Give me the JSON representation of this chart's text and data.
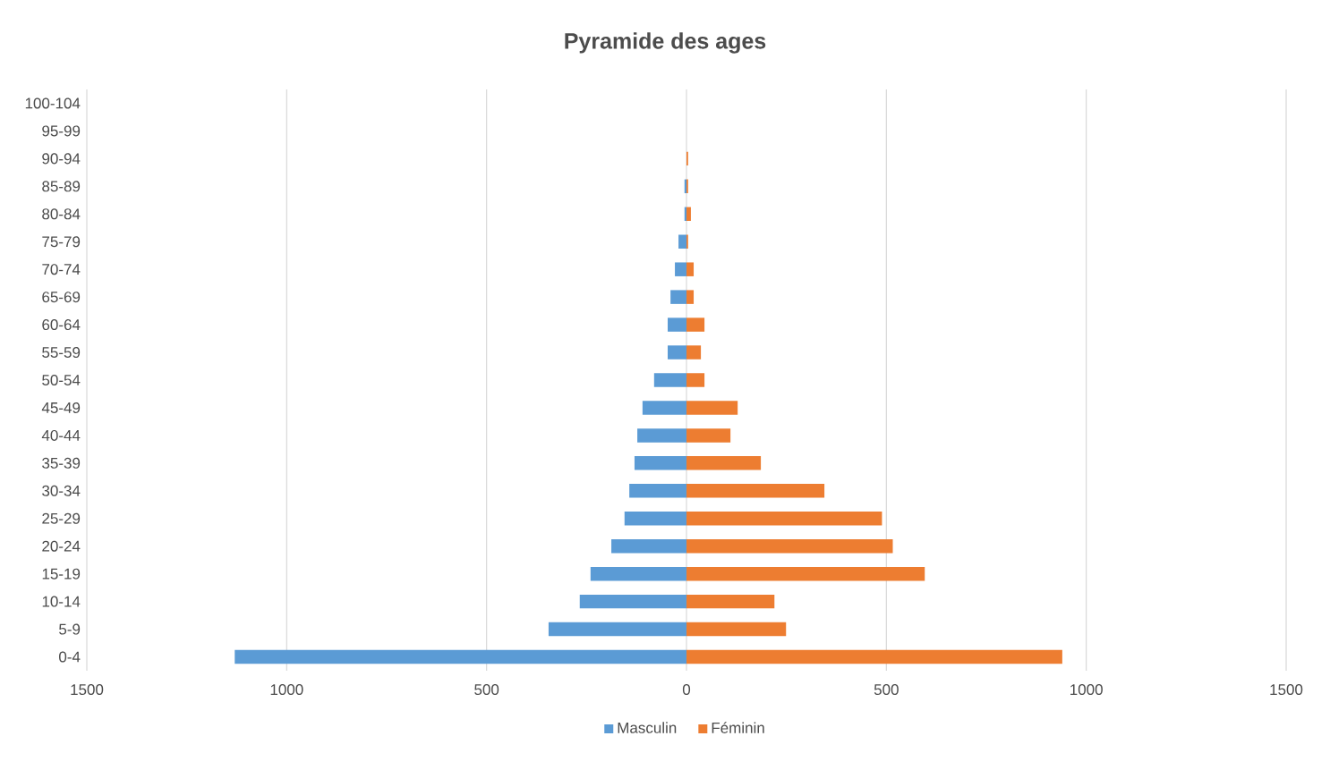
{
  "chart_data": {
    "type": "bar",
    "orientation": "horizontal",
    "title": "Pyramide des ages",
    "categories": [
      "100-104",
      "95-99",
      "90-94",
      "85-89",
      "80-84",
      "75-79",
      "70-74",
      "65-69",
      "60-64",
      "55-59",
      "50-54",
      "45-49",
      "40-44",
      "35-39",
      "30-34",
      "25-29",
      "20-24",
      "15-19",
      "10-14",
      "5-9",
      "0-4"
    ],
    "series": [
      {
        "name": "Masculin",
        "color": "#5b9bd5",
        "values": [
          0,
          0,
          0,
          -5,
          -5,
          -20,
          -29,
          -40,
          -47,
          -47,
          -81,
          -110,
          -123,
          -130,
          -143,
          -155,
          -188,
          -240,
          -267,
          -345,
          -1130
        ]
      },
      {
        "name": "Féminin",
        "color": "#ed7d31",
        "values": [
          0,
          0,
          4,
          4,
          11,
          4,
          18,
          18,
          45,
          36,
          45,
          128,
          110,
          186,
          345,
          489,
          516,
          596,
          220,
          249,
          940
        ]
      }
    ],
    "xlim": [
      -1500,
      1500
    ],
    "xticks": [
      {
        "value": -1500,
        "label": "1500"
      },
      {
        "value": -1000,
        "label": "1000"
      },
      {
        "value": -500,
        "label": "500"
      },
      0,
      500,
      1000,
      1500
    ],
    "stacked": true,
    "grid": "x",
    "legend": "bottom"
  }
}
